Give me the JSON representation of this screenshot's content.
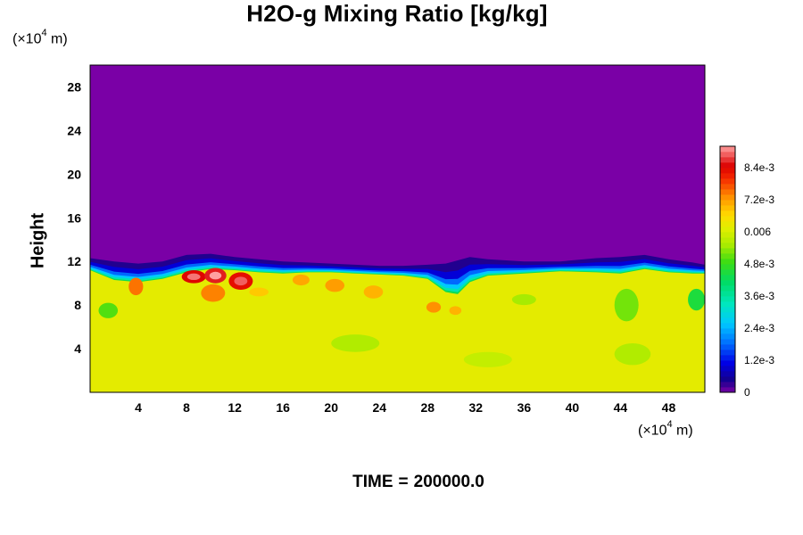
{
  "chart_data": {
    "type": "heatmap",
    "title": "H2O-g Mixing Ratio [kg/kg]",
    "ylabel": "Height",
    "x_unit": {
      "prefix": "(×10",
      "exp": "4",
      "suffix": " m)"
    },
    "y_unit": {
      "prefix": "(×10",
      "exp": "4",
      "suffix": " m)"
    },
    "xlim": [
      0,
      51
    ],
    "ylim": [
      0,
      30
    ],
    "x_ticks": [
      "4",
      "8",
      "12",
      "16",
      "20",
      "24",
      "28",
      "32",
      "36",
      "40",
      "44",
      "48"
    ],
    "y_ticks": [
      "4",
      "8",
      "12",
      "16",
      "20",
      "24",
      "28"
    ],
    "colorbar": {
      "min": 0,
      "max": 0.0092,
      "ticks": [
        {
          "value": 0,
          "label": "0"
        },
        {
          "value": 0.0012,
          "label": "1.2e-3"
        },
        {
          "value": 0.0024,
          "label": "2.4e-3"
        },
        {
          "value": 0.0036,
          "label": "3.6e-3"
        },
        {
          "value": 0.0048,
          "label": "4.8e-3"
        },
        {
          "value": 0.006,
          "label": "0.006"
        },
        {
          "value": 0.0072,
          "label": "7.2e-3"
        },
        {
          "value": 0.0084,
          "label": "8.4e-3"
        }
      ]
    },
    "field": {
      "upper_value": 0.0,
      "lower_value": 0.0062,
      "moist_top_height": [
        {
          "x": 0,
          "y": 11.2
        },
        {
          "x": 2,
          "y": 10.3
        },
        {
          "x": 4,
          "y": 10.1
        },
        {
          "x": 6,
          "y": 10.4
        },
        {
          "x": 8,
          "y": 11.0
        },
        {
          "x": 10,
          "y": 11.3
        },
        {
          "x": 12,
          "y": 11.2
        },
        {
          "x": 14,
          "y": 11.0
        },
        {
          "x": 16,
          "y": 10.9
        },
        {
          "x": 18,
          "y": 11.0
        },
        {
          "x": 20,
          "y": 11.0
        },
        {
          "x": 22,
          "y": 10.9
        },
        {
          "x": 24,
          "y": 10.8
        },
        {
          "x": 26,
          "y": 10.7
        },
        {
          "x": 28,
          "y": 10.4
        },
        {
          "x": 29.5,
          "y": 9.2
        },
        {
          "x": 30.5,
          "y": 9.0
        },
        {
          "x": 31.5,
          "y": 10.1
        },
        {
          "x": 33,
          "y": 10.7
        },
        {
          "x": 36,
          "y": 10.9
        },
        {
          "x": 39,
          "y": 11.1
        },
        {
          "x": 42,
          "y": 11.0
        },
        {
          "x": 44,
          "y": 10.9
        },
        {
          "x": 46,
          "y": 11.3
        },
        {
          "x": 48,
          "y": 11.0
        },
        {
          "x": 50,
          "y": 10.9
        },
        {
          "x": 51,
          "y": 10.9
        }
      ],
      "dry_top_height": [
        {
          "x": 0,
          "y": 12.3
        },
        {
          "x": 2,
          "y": 12.0
        },
        {
          "x": 4,
          "y": 11.8
        },
        {
          "x": 6,
          "y": 12.0
        },
        {
          "x": 8,
          "y": 12.6
        },
        {
          "x": 10,
          "y": 12.7
        },
        {
          "x": 12,
          "y": 12.4
        },
        {
          "x": 14,
          "y": 12.2
        },
        {
          "x": 16,
          "y": 12.0
        },
        {
          "x": 18,
          "y": 11.9
        },
        {
          "x": 20,
          "y": 11.8
        },
        {
          "x": 22,
          "y": 11.7
        },
        {
          "x": 24,
          "y": 11.6
        },
        {
          "x": 26,
          "y": 11.6
        },
        {
          "x": 28,
          "y": 11.7
        },
        {
          "x": 30,
          "y": 11.8
        },
        {
          "x": 32,
          "y": 12.1
        },
        {
          "x": 34,
          "y": 12.4
        },
        {
          "x": 36,
          "y": 12.2
        },
        {
          "x": 38,
          "y": 12.0
        },
        {
          "x": 40,
          "y": 12.0
        },
        {
          "x": 42,
          "y": 12.3
        },
        {
          "x": 44,
          "y": 12.4
        },
        {
          "x": 46,
          "y": 12.6
        },
        {
          "x": 48,
          "y": 12.2
        },
        {
          "x": 50,
          "y": 11.9
        },
        {
          "x": 51,
          "y": 11.7
        }
      ],
      "blobs": [
        {
          "x": 3.8,
          "y": 9.7,
          "rx": 0.6,
          "ry": 0.8,
          "value": 0.0075
        },
        {
          "x": 8.6,
          "y": 10.6,
          "rx": 1.0,
          "ry": 0.6,
          "value": 0.0084
        },
        {
          "x": 10.4,
          "y": 10.7,
          "rx": 0.9,
          "ry": 0.7,
          "value": 0.0086
        },
        {
          "x": 12.5,
          "y": 10.2,
          "rx": 1.0,
          "ry": 0.8,
          "value": 0.0083
        },
        {
          "x": 10.2,
          "y": 9.1,
          "rx": 1.0,
          "ry": 0.8,
          "value": 0.0074
        },
        {
          "x": 17.5,
          "y": 10.3,
          "rx": 0.7,
          "ry": 0.5,
          "value": 0.0071
        },
        {
          "x": 20.3,
          "y": 9.8,
          "rx": 0.8,
          "ry": 0.6,
          "value": 0.0072
        },
        {
          "x": 23.5,
          "y": 9.2,
          "rx": 0.8,
          "ry": 0.6,
          "value": 0.007
        },
        {
          "x": 28.5,
          "y": 7.8,
          "rx": 0.6,
          "ry": 0.5,
          "value": 0.0073
        },
        {
          "x": 30.3,
          "y": 7.5,
          "rx": 0.5,
          "ry": 0.4,
          "value": 0.007
        },
        {
          "x": 14,
          "y": 9.2,
          "rx": 0.8,
          "ry": 0.4,
          "value": 0.0068
        },
        {
          "x": 36,
          "y": 8.5,
          "rx": 1.0,
          "ry": 0.5,
          "value": 0.0055
        },
        {
          "x": 44.5,
          "y": 8.0,
          "rx": 1.0,
          "ry": 1.5,
          "value": 0.0052
        },
        {
          "x": 50.3,
          "y": 8.5,
          "rx": 0.7,
          "ry": 1.0,
          "value": 0.0045
        },
        {
          "x": 1.5,
          "y": 7.5,
          "rx": 0.8,
          "ry": 0.7,
          "value": 0.005
        },
        {
          "x": 22,
          "y": 4.5,
          "rx": 2.0,
          "ry": 0.8,
          "value": 0.0056
        },
        {
          "x": 45,
          "y": 3.5,
          "rx": 1.5,
          "ry": 1.0,
          "value": 0.0056
        },
        {
          "x": 33,
          "y": 3.0,
          "rx": 2.0,
          "ry": 0.7,
          "value": 0.0058
        }
      ]
    }
  },
  "footer": {
    "time_label": "TIME",
    "equals": "=",
    "time_value": "200000.0"
  }
}
